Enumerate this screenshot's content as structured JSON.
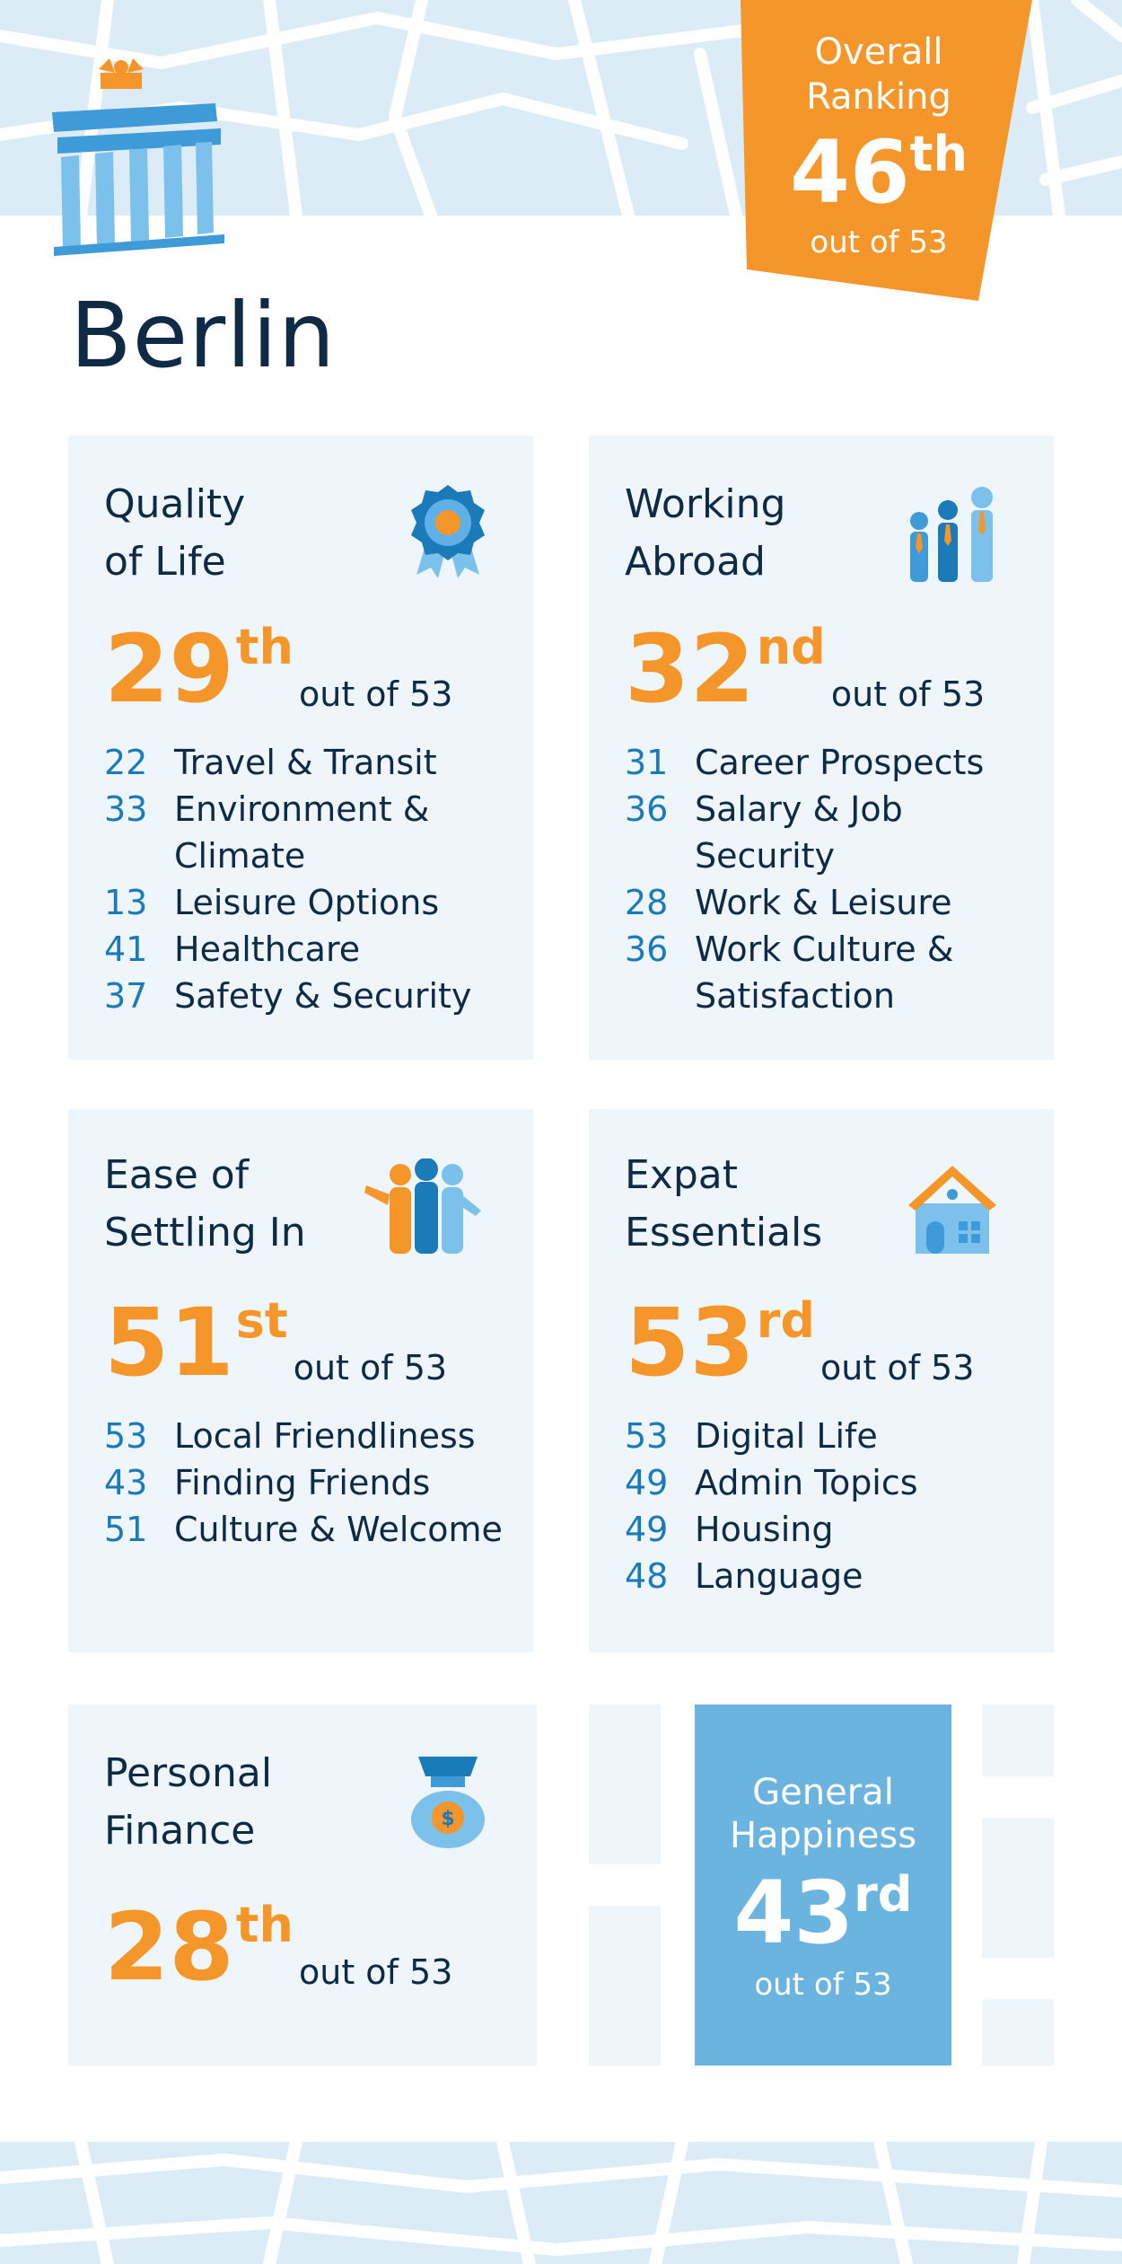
{
  "city": "Berlin",
  "overall": {
    "label_line1": "Overall",
    "label_line2": "Ranking",
    "rank": "46",
    "suffix": "th",
    "out_of": "out of 53",
    "color": "#f5962a"
  },
  "colors": {
    "accent": "#f5962a",
    "number_blue": "#1b7ab8",
    "card_bg": "#eef5fb",
    "map_bg": "#dcecf7",
    "happiness_bg": "#6cb4e0",
    "dark_text": "#0e2a45"
  },
  "cards": {
    "quality": {
      "title_line1": "Quality",
      "title_line2": "of Life",
      "icon": "award-ribbon-icon",
      "rank": "29",
      "suffix": "th",
      "out_of": "out of 53",
      "items": [
        {
          "num": "22",
          "label": "Travel & Transit"
        },
        {
          "num": "33",
          "label": "Environment & Climate"
        },
        {
          "num": "13",
          "label": "Leisure Options"
        },
        {
          "num": "41",
          "label": "Healthcare"
        },
        {
          "num": "37",
          "label": "Safety & Security"
        }
      ]
    },
    "working": {
      "title_line1": "Working",
      "title_line2": "Abroad",
      "icon": "business-people-icon",
      "rank": "32",
      "suffix": "nd",
      "out_of": "out of 53",
      "items": [
        {
          "num": "31",
          "label": "Career Prospects"
        },
        {
          "num": "36",
          "label": "Salary & Job Security"
        },
        {
          "num": "28",
          "label": "Work & Leisure"
        },
        {
          "num": "36",
          "label": "Work Culture & Satisfaction"
        }
      ]
    },
    "settling": {
      "title_line1": "Ease of",
      "title_line2": "Settling In",
      "icon": "friends-group-icon",
      "rank": "51",
      "suffix": "st",
      "out_of": "out of 53",
      "items": [
        {
          "num": "53",
          "label": "Local Friendliness"
        },
        {
          "num": "43",
          "label": "Finding Friends"
        },
        {
          "num": "51",
          "label": "Culture & Welcome"
        }
      ]
    },
    "essentials": {
      "title_line1": "Expat",
      "title_line2": "Essentials",
      "icon": "house-icon",
      "rank": "53",
      "suffix": "rd",
      "out_of": "out of 53",
      "items": [
        {
          "num": "53",
          "label": "Digital Life"
        },
        {
          "num": "49",
          "label": "Admin Topics"
        },
        {
          "num": "49",
          "label": "Housing"
        },
        {
          "num": "48",
          "label": "Language"
        }
      ]
    },
    "finance": {
      "title_line1": "Personal",
      "title_line2": "Finance",
      "icon": "money-bag-icon",
      "rank": "28",
      "suffix": "th",
      "out_of": "out of 53"
    }
  },
  "happiness": {
    "label_line1": "General",
    "label_line2": "Happiness",
    "rank": "43",
    "suffix": "rd",
    "out_of": "out of 53"
  }
}
